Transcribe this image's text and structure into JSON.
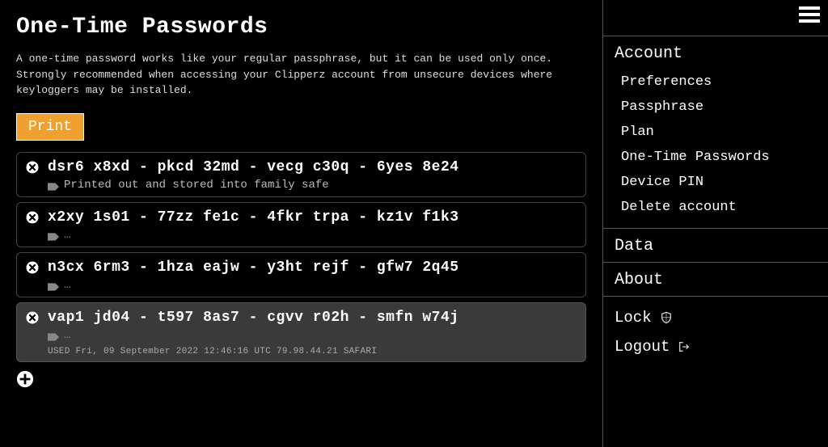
{
  "main": {
    "title": "One-Time Passwords",
    "description": "A one-time password works like your regular passphrase, but it can be used only once. Strongly recommended when accessing your Clipperz account from unsecure devices where keyloggers may be installed.",
    "print_label": "Print",
    "note_placeholder": "…",
    "otps": [
      {
        "code": "dsr6 x8xd - pkcd 32md - vecg c30q - 6yes 8e24",
        "note": "Printed out and stored into family safe",
        "used": false,
        "meta": ""
      },
      {
        "code": "x2xy 1s01 - 77zz fe1c - 4fkr trpa - kz1v f1k3",
        "note": "",
        "used": false,
        "meta": ""
      },
      {
        "code": "n3cx 6rm3 - 1hza eajw - y3ht rejf - gfw7 2q45",
        "note": "",
        "used": false,
        "meta": ""
      },
      {
        "code": "vap1 jd04 - t597 8as7 - cgvv r02h - smfn w74j",
        "note": "",
        "used": true,
        "meta": "USED  Fri, 09 September 2022 12:46:16 UTC  79.98.44.21  SAFARI"
      }
    ]
  },
  "sidebar": {
    "sections": [
      {
        "header": "Account",
        "items": [
          "Preferences",
          "Passphrase",
          "Plan",
          "One-Time Passwords",
          "Device PIN",
          "Delete account"
        ]
      },
      {
        "header": "Data",
        "items": []
      },
      {
        "header": "About",
        "items": []
      }
    ],
    "actions": {
      "lock": "Lock",
      "logout": "Logout"
    }
  },
  "colors": {
    "background": "#000000",
    "text": "#ffffff",
    "muted": "#bbbbbb",
    "border": "#555555",
    "card_border": "#444444",
    "used_bg": "#3a3a3a",
    "print_bg": "#f0a030"
  }
}
